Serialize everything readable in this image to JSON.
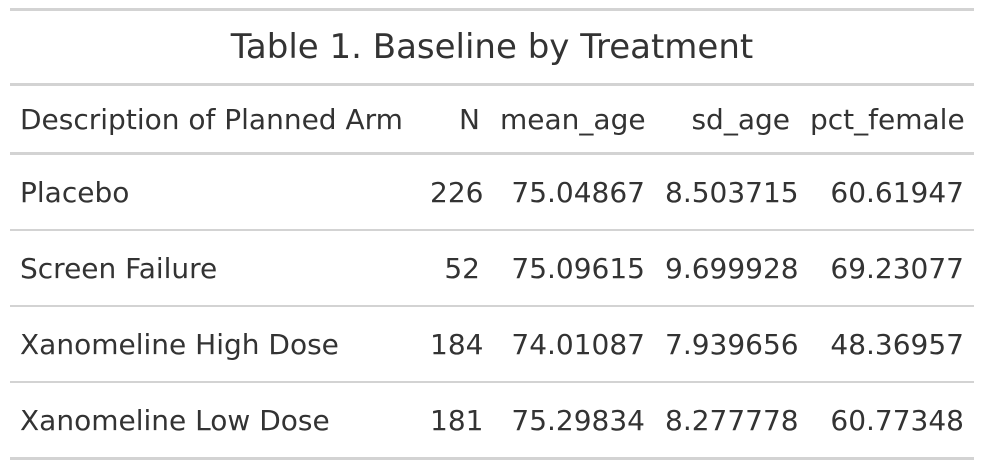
{
  "table": {
    "title": "Table 1. Baseline by Treatment",
    "columns": [
      "Description of Planned Arm",
      "N",
      "mean_age",
      "sd_age",
      "pct_female"
    ],
    "rows": [
      [
        "Placebo",
        "226",
        "75.04867",
        "8.503715",
        "60.61947"
      ],
      [
        "Screen Failure",
        "52",
        "75.09615",
        "9.699928",
        "69.23077"
      ],
      [
        "Xanomeline High Dose",
        "184",
        "74.01087",
        "7.939656",
        "48.36957"
      ],
      [
        "Xanomeline Low Dose",
        "181",
        "75.29834",
        "8.277778",
        "60.77348"
      ]
    ]
  }
}
